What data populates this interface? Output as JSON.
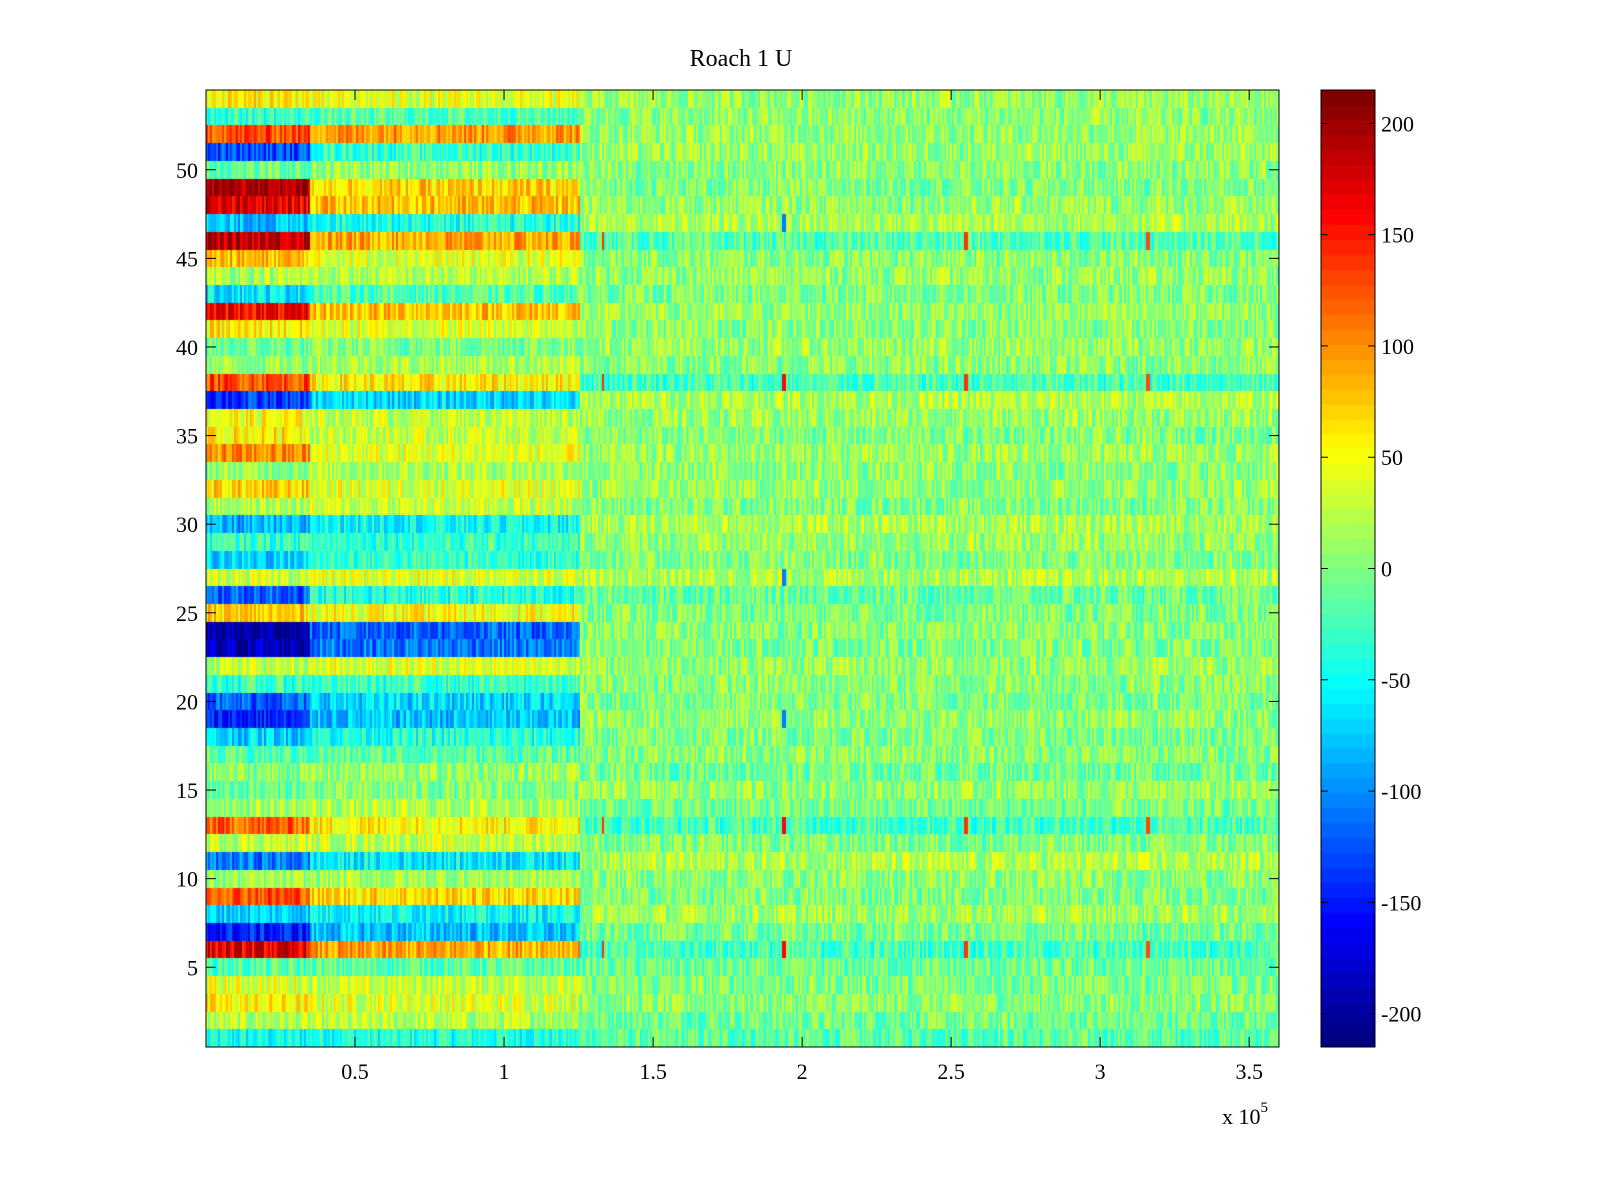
{
  "chart_data": {
    "type": "heatmap",
    "title": "Roach 1 U",
    "xlabel": "",
    "ylabel": "",
    "x_multiplier_label": "x 10",
    "x_multiplier_exponent": "5",
    "xlim": [
      0,
      3.6
    ],
    "ylim": [
      0.5,
      54.5
    ],
    "x_unit_scale": 100000,
    "x_ticks": [
      0.5,
      1,
      1.5,
      2,
      2.5,
      3,
      3.5
    ],
    "x_tick_labels": [
      "0.5",
      "1",
      "1.5",
      "2",
      "2.5",
      "3",
      "3.5"
    ],
    "y_ticks": [
      5,
      10,
      15,
      20,
      25,
      30,
      35,
      40,
      45,
      50
    ],
    "y_tick_labels": [
      "5",
      "10",
      "15",
      "20",
      "25",
      "30",
      "35",
      "40",
      "45",
      "50"
    ],
    "colorbar": {
      "colormap": "jet",
      "clim": [
        -215,
        215
      ],
      "ticks": [
        -200,
        -150,
        -100,
        -50,
        0,
        50,
        100,
        150,
        200
      ],
      "tick_labels": [
        "-200",
        "-150",
        "-100",
        "-50",
        "0",
        "50",
        "100",
        "150",
        "200"
      ]
    },
    "segments_x_breaks": [
      0,
      0.35,
      1.25,
      3.6
    ],
    "rows": [
      {
        "channel": 1,
        "means": [
          -50,
          -40,
          -15
        ]
      },
      {
        "channel": 2,
        "means": [
          20,
          20,
          -5
        ]
      },
      {
        "channel": 3,
        "means": [
          55,
          40,
          5
        ]
      },
      {
        "channel": 4,
        "means": [
          40,
          30,
          0
        ]
      },
      {
        "channel": 5,
        "means": [
          -20,
          -15,
          -10
        ]
      },
      {
        "channel": 6,
        "means": [
          170,
          90,
          -25
        ]
      },
      {
        "channel": 7,
        "means": [
          -150,
          -80,
          -5
        ]
      },
      {
        "channel": 8,
        "means": [
          -70,
          -50,
          15
        ]
      },
      {
        "channel": 9,
        "means": [
          130,
          70,
          0
        ]
      },
      {
        "channel": 10,
        "means": [
          10,
          15,
          5
        ]
      },
      {
        "channel": 11,
        "means": [
          -110,
          -60,
          20
        ]
      },
      {
        "channel": 12,
        "means": [
          30,
          30,
          0
        ]
      },
      {
        "channel": 13,
        "means": [
          120,
          60,
          -25
        ]
      },
      {
        "channel": 14,
        "means": [
          15,
          20,
          -5
        ]
      },
      {
        "channel": 15,
        "means": [
          -10,
          0,
          10
        ]
      },
      {
        "channel": 16,
        "means": [
          5,
          10,
          -5
        ]
      },
      {
        "channel": 17,
        "means": [
          -20,
          -15,
          5
        ]
      },
      {
        "channel": 18,
        "means": [
          -70,
          -40,
          0
        ]
      },
      {
        "channel": 19,
        "means": [
          -150,
          -80,
          10
        ]
      },
      {
        "channel": 20,
        "means": [
          -120,
          -70,
          0
        ]
      },
      {
        "channel": 21,
        "means": [
          -30,
          -30,
          5
        ]
      },
      {
        "channel": 22,
        "means": [
          30,
          40,
          10
        ]
      },
      {
        "channel": 23,
        "means": [
          -190,
          -110,
          0
        ]
      },
      {
        "channel": 24,
        "means": [
          -200,
          -120,
          5
        ]
      },
      {
        "channel": 25,
        "means": [
          70,
          50,
          0
        ]
      },
      {
        "channel": 26,
        "means": [
          -120,
          -40,
          -10
        ]
      },
      {
        "channel": 27,
        "means": [
          30,
          40,
          20
        ]
      },
      {
        "channel": 28,
        "means": [
          -70,
          -30,
          0
        ]
      },
      {
        "channel": 29,
        "means": [
          -30,
          -30,
          10
        ]
      },
      {
        "channel": 30,
        "means": [
          -90,
          -50,
          20
        ]
      },
      {
        "channel": 31,
        "means": [
          20,
          30,
          0
        ]
      },
      {
        "channel": 32,
        "means": [
          70,
          40,
          10
        ]
      },
      {
        "channel": 33,
        "means": [
          10,
          20,
          5
        ]
      },
      {
        "channel": 34,
        "means": [
          100,
          40,
          10
        ]
      },
      {
        "channel": 35,
        "means": [
          60,
          30,
          0
        ]
      },
      {
        "channel": 36,
        "means": [
          50,
          30,
          10
        ]
      },
      {
        "channel": 37,
        "means": [
          -140,
          -70,
          20
        ]
      },
      {
        "channel": 38,
        "means": [
          130,
          60,
          -25
        ]
      },
      {
        "channel": 39,
        "means": [
          10,
          20,
          5
        ]
      },
      {
        "channel": 40,
        "means": [
          -10,
          0,
          10
        ]
      },
      {
        "channel": 41,
        "means": [
          60,
          40,
          5
        ]
      },
      {
        "channel": 42,
        "means": [
          160,
          80,
          10
        ]
      },
      {
        "channel": 43,
        "means": [
          -60,
          -20,
          0
        ]
      },
      {
        "channel": 44,
        "means": [
          20,
          20,
          10
        ]
      },
      {
        "channel": 45,
        "means": [
          80,
          40,
          5
        ]
      },
      {
        "channel": 46,
        "means": [
          190,
          90,
          -20
        ]
      },
      {
        "channel": 47,
        "means": [
          -80,
          -40,
          20
        ]
      },
      {
        "channel": 48,
        "means": [
          170,
          80,
          10
        ]
      },
      {
        "channel": 49,
        "means": [
          200,
          70,
          0
        ]
      },
      {
        "channel": 50,
        "means": [
          -10,
          10,
          5
        ]
      },
      {
        "channel": 51,
        "means": [
          -130,
          -30,
          10
        ]
      },
      {
        "channel": 52,
        "means": [
          130,
          100,
          10
        ]
      },
      {
        "channel": 53,
        "means": [
          -30,
          -20,
          5
        ]
      },
      {
        "channel": 54,
        "means": [
          60,
          40,
          10
        ]
      }
    ],
    "spikes": [
      {
        "x": 1.33,
        "channels": [
          6,
          13,
          38,
          46
        ],
        "value": 140
      },
      {
        "x": 1.94,
        "channels": [
          6,
          13,
          38
        ],
        "value": 160
      },
      {
        "x": 1.94,
        "channels": [
          19,
          27,
          47
        ],
        "value": -110
      },
      {
        "x": 2.55,
        "channels": [
          6,
          13,
          38,
          46
        ],
        "value": 140
      },
      {
        "x": 3.16,
        "channels": [
          6,
          13,
          38,
          46
        ],
        "value": 130
      }
    ]
  }
}
